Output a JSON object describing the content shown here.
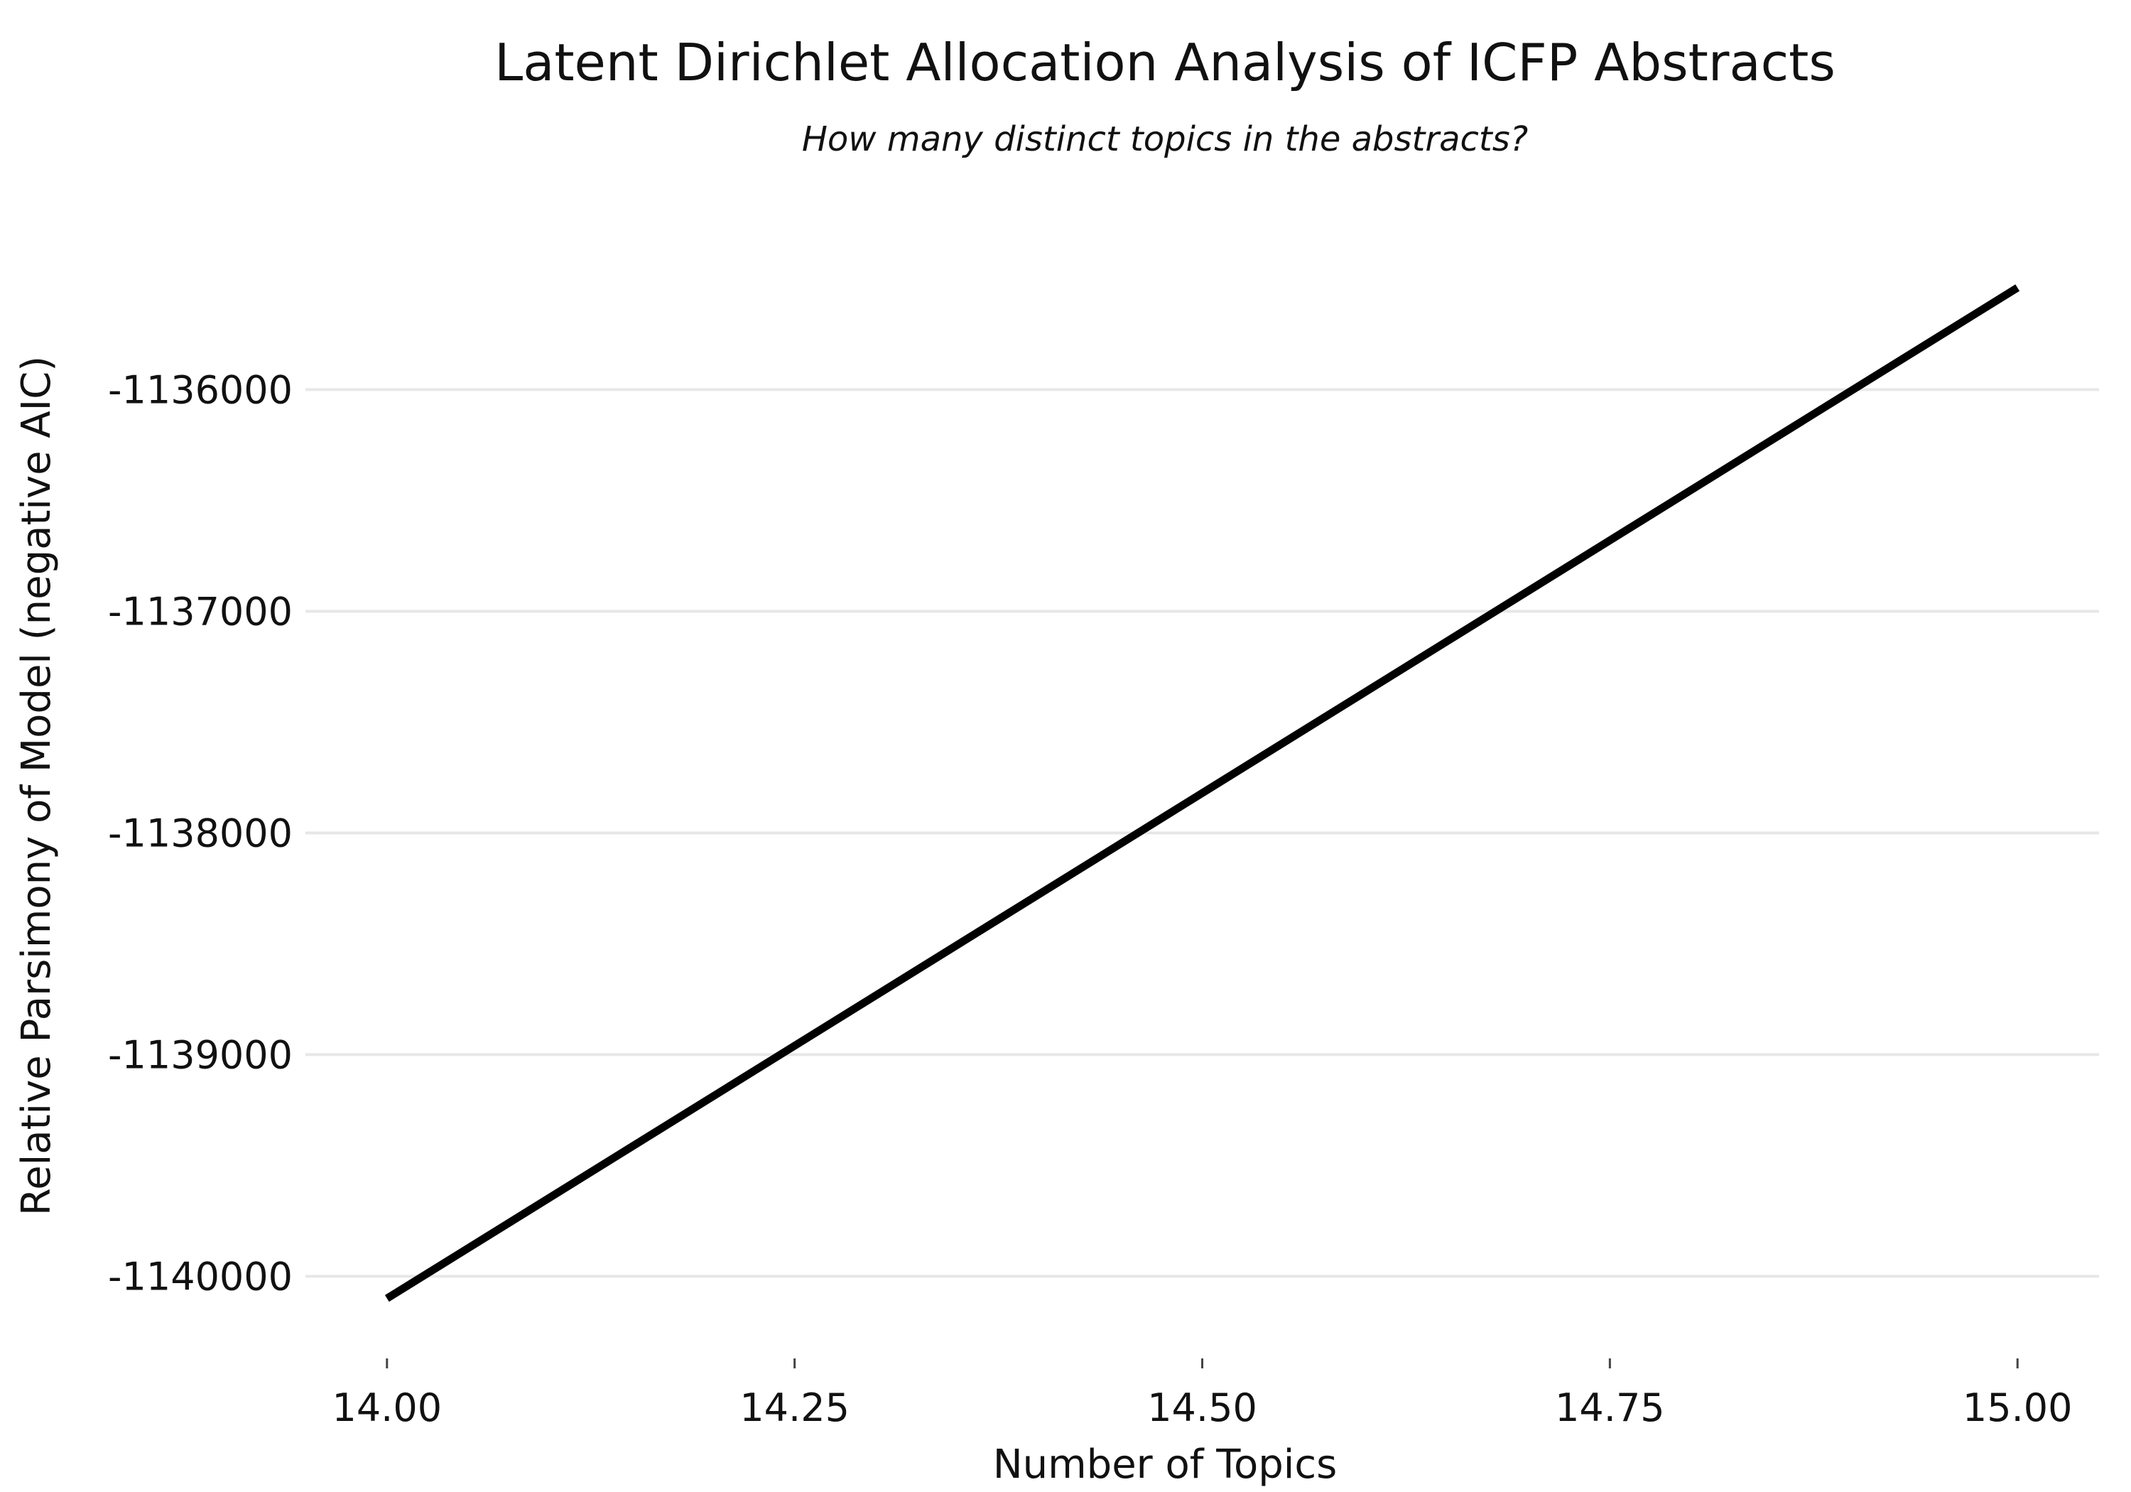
{
  "chart_data": {
    "type": "line",
    "title": "Latent Dirichlet Allocation Analysis of ICFP Abstracts",
    "subtitle": "How many distinct topics in the abstracts?",
    "xlabel": "Number of Topics",
    "ylabel": "Relative Parsimony of Model (negative AIC)",
    "xlim": [
      13.95,
      15.05
    ],
    "ylim": [
      -1140300,
      -1135300
    ],
    "x_ticks": [
      14.0,
      14.25,
      14.5,
      14.75,
      15.0
    ],
    "x_tick_labels": [
      "14.00",
      "14.25",
      "14.50",
      "14.75",
      "15.00"
    ],
    "y_ticks": [
      -1140000,
      -1139000,
      -1138000,
      -1137000,
      -1136000
    ],
    "y_tick_labels": [
      "-1140000",
      "-1139000",
      "-1138000",
      "-1137000",
      "-1136000"
    ],
    "grid": "horizontal major",
    "legend": "none",
    "series": [
      {
        "color": "#000000",
        "x": [
          14,
          15
        ],
        "y": [
          -1140100,
          -1135540
        ]
      }
    ]
  }
}
